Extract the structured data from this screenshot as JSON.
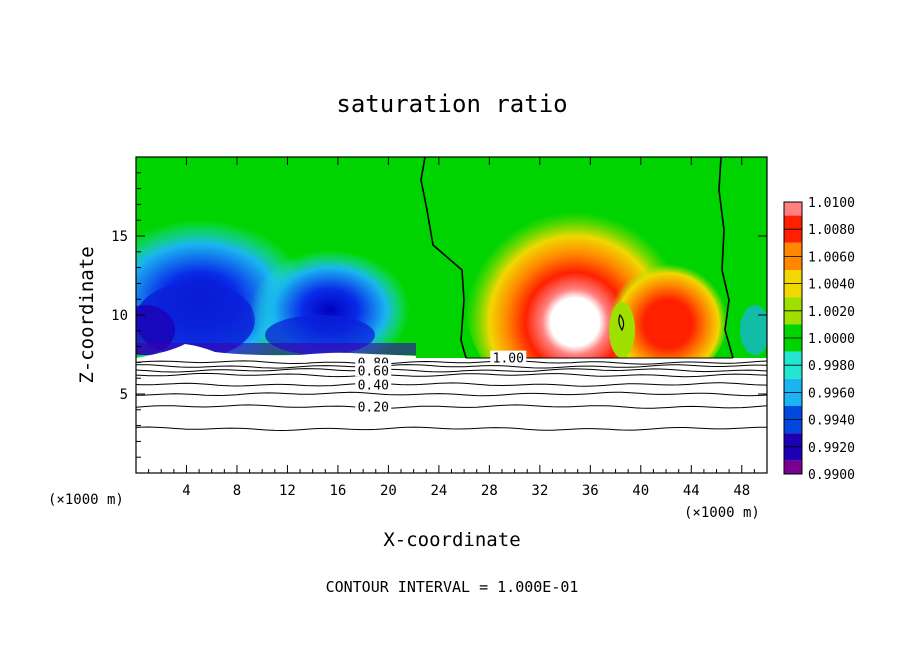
{
  "chart_data": {
    "type": "heatmap",
    "title": "saturation ratio",
    "xlabel": "X-coordinate",
    "ylabel": "Z-coordinate",
    "x_unit_left": "(×1000 m)",
    "x_unit_right": "(×1000 m)",
    "xlim": [
      0,
      50
    ],
    "ylim": [
      0,
      20
    ],
    "x_ticks": [
      4,
      8,
      12,
      16,
      20,
      24,
      28,
      32,
      36,
      40,
      44,
      48
    ],
    "y_ticks": [
      5,
      10,
      15
    ],
    "colorbar": {
      "levels": [
        "0.9900",
        "0.9920",
        "0.9940",
        "0.9960",
        "0.9980",
        "1.0000",
        "1.0020",
        "1.0040",
        "1.0060",
        "1.0080",
        "1.0100"
      ],
      "min": 0.99,
      "max": 1.01,
      "colors": [
        "#7a0090",
        "#1c00b4",
        "#0048e0",
        "#1ab4f0",
        "#22e6d0",
        "#00d400",
        "#a0e000",
        "#f0d800",
        "#ff8800",
        "#ff2000",
        "#ff8080"
      ]
    },
    "cloud_base_km": 7.3,
    "fill_fields": [
      {
        "name": "left-blue-region",
        "x": [
          0,
          23
        ],
        "value": 0.9945
      },
      {
        "name": "right-red-region",
        "x": [
          26,
          47
        ],
        "value": 1.0065
      }
    ],
    "contour_lines": [
      {
        "level": "1.00",
        "label_x_km": 29.5,
        "label_z_km": 7.3
      },
      {
        "level": "0.80",
        "label_x_km": 18.8,
        "label_z_km": 7.0
      },
      {
        "level": "0.60",
        "label_x_km": 18.8,
        "label_z_km": 6.5
      },
      {
        "level": "0.40",
        "label_x_km": 18.8,
        "label_z_km": 5.6
      },
      {
        "level": "0.20",
        "label_x_km": 18.8,
        "label_z_km": 4.2
      }
    ],
    "contour_interval_text": "CONTOUR INTERVAL = 1.000E-01"
  }
}
